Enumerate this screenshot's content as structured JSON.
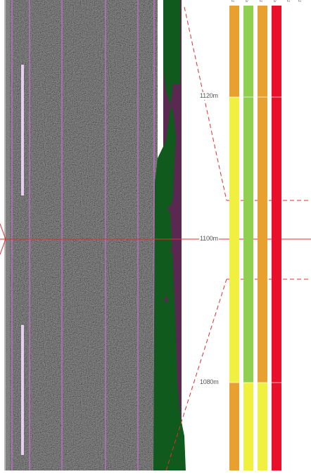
{
  "distance_markers": [
    {
      "label": "1120m"
    },
    {
      "label": "1100m"
    },
    {
      "label": "1080m"
    }
  ],
  "column_headers": [
    "z",
    "≥",
    "z",
    "≥",
    "z",
    "z"
  ],
  "colors": {
    "road_base": "#3f3f3f",
    "lane_line": "#c070c8",
    "marker_line": "#e8b0f0",
    "vegetation": "#0f5a1c",
    "vegetation_edge": "#5a2850",
    "guide_line": "#e03030",
    "orange": "#e8a030",
    "yellow": "#f0f040",
    "green": "#90d050",
    "red": "#e8102a"
  }
}
